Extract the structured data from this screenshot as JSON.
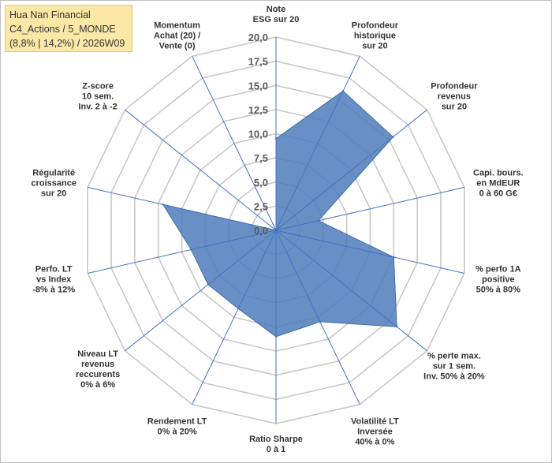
{
  "chart_data": {
    "type": "radar",
    "title_lines": [
      "Hua Nan Financial",
      "C4_Actions / 5_MONDE",
      "(8,8% | 14,2%) / 2026W09"
    ],
    "r_range": [
      0,
      20
    ],
    "ticks": [
      "0,0",
      "2,5",
      "5,0",
      "7,5",
      "10,0",
      "12,5",
      "15,0",
      "17,5",
      "20,0"
    ],
    "axes": [
      {
        "label": [
          "Note",
          "ESG sur 20"
        ],
        "value": 9.5
      },
      {
        "label": [
          "Profondeur",
          "historique",
          "sur 20"
        ],
        "value": 16.0
      },
      {
        "label": [
          "Profondeur",
          "revenus",
          "sur 20"
        ],
        "value": 15.5
      },
      {
        "label": [
          "Capi. bours.",
          "en MdEUR",
          "0 à 60 G€"
        ],
        "value": 4.5
      },
      {
        "label": [
          "% perfo 1A",
          "positive",
          "50% à 80%"
        ],
        "value": 12.5
      },
      {
        "label": [
          "% perte max.",
          "sur 1 sem.",
          "Inv. 50% à 20%"
        ],
        "value": 16.0
      },
      {
        "label": [
          "Volatilité LT",
          "Inversée",
          "40% à 0%"
        ],
        "value": 10.5
      },
      {
        "label": [
          "Ratio Sharpe",
          "0 à 1"
        ],
        "value": 11.0
      },
      {
        "label": [
          "Rendement LT",
          "0% à 20%"
        ],
        "value": 9.0
      },
      {
        "label": [
          "Niveau LT",
          "revenus",
          "reccurents",
          "0% à 6%"
        ],
        "value": 9.0
      },
      {
        "label": [
          "Perfo. LT",
          "vs Index",
          "-8% à 12%"
        ],
        "value": 9.0
      },
      {
        "label": [
          "Régularité",
          "croissance",
          "sur 20"
        ],
        "value": 12.0
      },
      {
        "label": [
          "Z-score",
          "10 sem.",
          "Inv. 2 à -2"
        ],
        "value": 0.0
      },
      {
        "label": [
          "Momentum",
          "Achat (20) /",
          "Vente (0)"
        ],
        "value": 0.0
      }
    ],
    "colors": {
      "fill": "#4f7dbb",
      "spoke": "#4472c4",
      "grid": "#c8c8c8"
    }
  }
}
